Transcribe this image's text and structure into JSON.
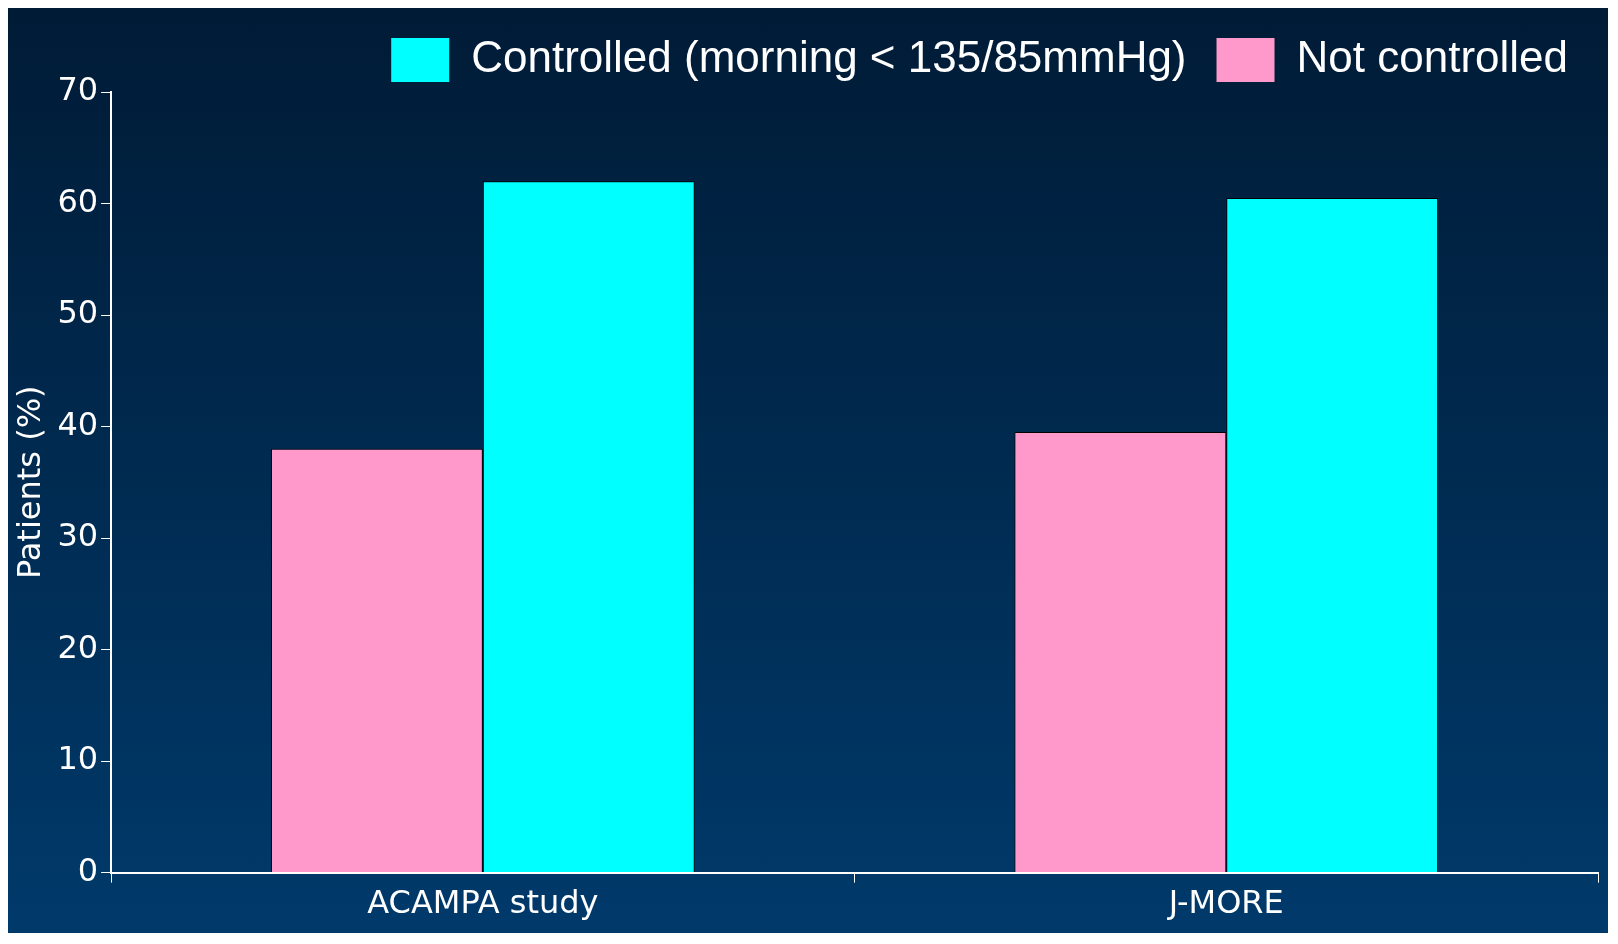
{
  "chart_data": {
    "type": "bar",
    "ylabel": "Patients (%)",
    "categories": [
      "ACAMPA study",
      "J-MORE"
    ],
    "series": [
      {
        "name": "Not controlled",
        "color": "#ff99cc",
        "values": [
          38,
          39.5
        ]
      },
      {
        "name": "Controlled (morning < 135/85mmHg)",
        "color": "#00ffff",
        "values": [
          62,
          60.5
        ]
      }
    ],
    "ylim": [
      0,
      70
    ],
    "yticks": [
      0,
      10,
      20,
      30,
      40,
      50,
      60,
      70
    ],
    "grid": false,
    "legend": "top right"
  }
}
